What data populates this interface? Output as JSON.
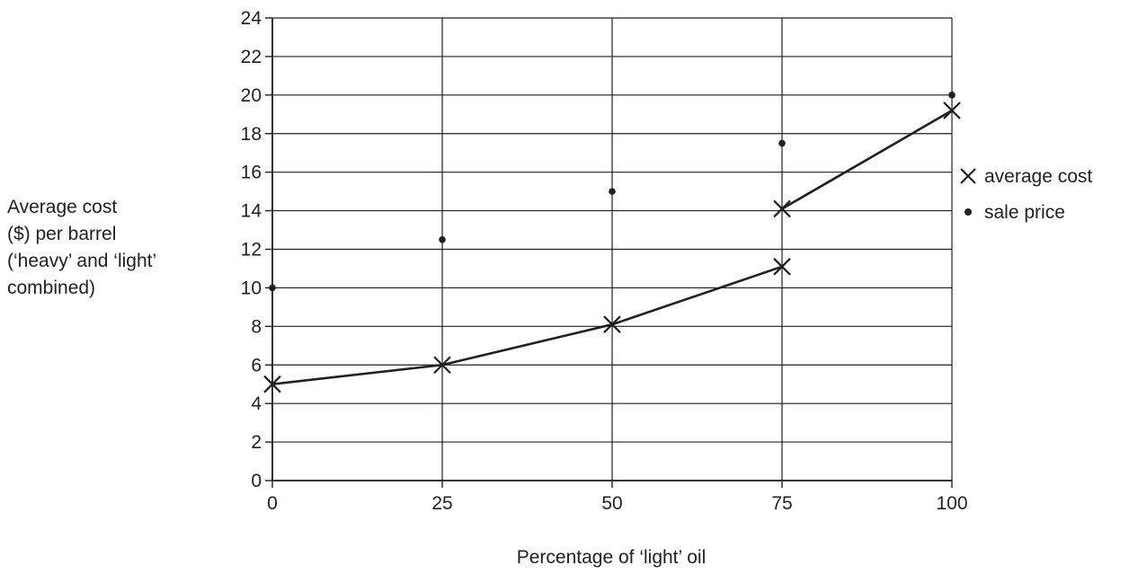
{
  "chart_data": {
    "type": "scatter",
    "title": "",
    "xlabel": "Percentage of ‘light’ oil",
    "ylabel_lines": [
      "Average cost",
      "($) per barrel",
      "(‘heavy’ and ‘light’",
      "combined)"
    ],
    "xlim": [
      0,
      100
    ],
    "ylim": [
      0,
      24
    ],
    "x_ticks": [
      0,
      25,
      50,
      75,
      100
    ],
    "y_ticks": [
      0,
      2,
      4,
      6,
      8,
      10,
      12,
      14,
      16,
      18,
      20,
      22,
      24
    ],
    "grid": "on",
    "legend_position": "right",
    "series": [
      {
        "name": "average cost",
        "marker": "cross",
        "connected": true,
        "color": "#231f20",
        "segments": [
          [
            {
              "x": 0,
              "y": 5
            },
            {
              "x": 25,
              "y": 6
            },
            {
              "x": 50,
              "y": 8.1
            },
            {
              "x": 75,
              "y": 11.1
            }
          ],
          [
            {
              "x": 75,
              "y": 14.1
            },
            {
              "x": 100,
              "y": 19.2
            }
          ]
        ]
      },
      {
        "name": "sale price",
        "marker": "dot",
        "connected": false,
        "color": "#231f20",
        "points": [
          {
            "x": 0,
            "y": 10
          },
          {
            "x": 25,
            "y": 12.5
          },
          {
            "x": 50,
            "y": 15
          },
          {
            "x": 75,
            "y": 17.5
          },
          {
            "x": 100,
            "y": 20
          }
        ]
      }
    ],
    "legend": [
      {
        "symbol": "×",
        "label": "average cost"
      },
      {
        "symbol": "•",
        "label": "sale price"
      }
    ]
  }
}
